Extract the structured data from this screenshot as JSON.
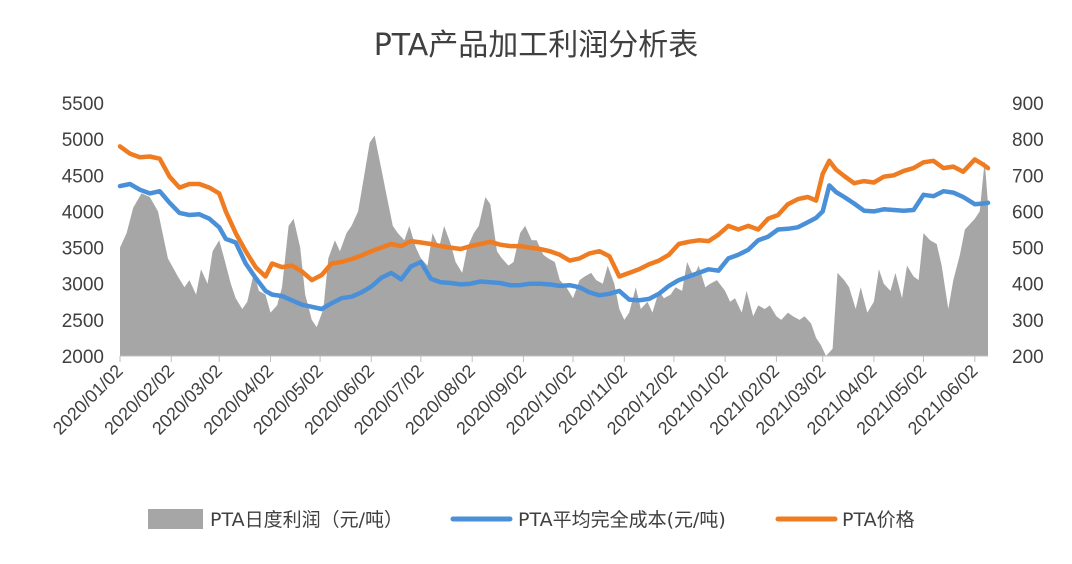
{
  "chart_data": {
    "type": "line",
    "title": "PTA产品加工利润分析表",
    "x_type": "date",
    "xlim": [
      "2020-01-02",
      "2021-06-10"
    ],
    "x_tick_labels": [
      "2020/01/02",
      "2020/02/02",
      "2020/03/02",
      "2020/04/02",
      "2020/05/02",
      "2020/06/02",
      "2020/07/02",
      "2020/08/02",
      "2020/09/02",
      "2020/10/02",
      "2020/11/02",
      "2020/12/02",
      "2021/01/02",
      "2021/02/02",
      "2021/03/02",
      "2021/04/02",
      "2021/05/02",
      "2021/06/02"
    ],
    "y_left": {
      "ticks": [
        "2000",
        "2500",
        "3000",
        "3500",
        "4000",
        "4500",
        "5000",
        "5500"
      ],
      "ylim": [
        2000,
        5500
      ]
    },
    "y_right": {
      "ticks": [
        "200",
        "300",
        "400",
        "500",
        "600",
        "700",
        "800",
        "900"
      ],
      "ylim": [
        200,
        900
      ]
    },
    "grid": false,
    "legend_position": "bottom",
    "series": [
      {
        "name": "PTA日度利润（元/吨）",
        "type": "area",
        "axis": "right",
        "color": "#a6a6a6",
        "x": [
          "2020-01-02",
          "2020-01-06",
          "2020-01-10",
          "2020-01-15",
          "2020-01-20",
          "2020-01-25",
          "2020-01-31",
          "2020-02-06",
          "2020-02-10",
          "2020-02-13",
          "2020-02-17",
          "2020-02-20",
          "2020-02-24",
          "2020-02-27",
          "2020-03-02",
          "2020-03-05",
          "2020-03-09",
          "2020-03-12",
          "2020-03-16",
          "2020-03-19",
          "2020-03-23",
          "2020-03-26",
          "2020-03-30",
          "2020-04-02",
          "2020-04-06",
          "2020-04-09",
          "2020-04-13",
          "2020-04-16",
          "2020-04-20",
          "2020-04-23",
          "2020-04-27",
          "2020-04-30",
          "2020-05-04",
          "2020-05-07",
          "2020-05-11",
          "2020-05-14",
          "2020-05-18",
          "2020-05-21",
          "2020-05-25",
          "2020-05-28",
          "2020-06-01",
          "2020-06-04",
          "2020-06-08",
          "2020-06-11",
          "2020-06-15",
          "2020-06-18",
          "2020-06-22",
          "2020-06-25",
          "2020-06-29",
          "2020-07-02",
          "2020-07-06",
          "2020-07-09",
          "2020-07-13",
          "2020-07-16",
          "2020-07-20",
          "2020-07-23",
          "2020-07-27",
          "2020-07-30",
          "2020-08-03",
          "2020-08-06",
          "2020-08-10",
          "2020-08-13",
          "2020-08-17",
          "2020-08-20",
          "2020-08-24",
          "2020-08-27",
          "2020-08-31",
          "2020-09-03",
          "2020-09-07",
          "2020-09-10",
          "2020-09-14",
          "2020-09-17",
          "2020-09-21",
          "2020-09-24",
          "2020-09-28",
          "2020-10-02",
          "2020-10-06",
          "2020-10-09",
          "2020-10-13",
          "2020-10-16",
          "2020-10-20",
          "2020-10-23",
          "2020-10-27",
          "2020-10-30",
          "2020-11-02",
          "2020-11-05",
          "2020-11-09",
          "2020-11-12",
          "2020-11-16",
          "2020-11-19",
          "2020-11-23",
          "2020-11-26",
          "2020-11-30",
          "2020-12-03",
          "2020-12-07",
          "2020-12-10",
          "2020-12-14",
          "2020-12-17",
          "2020-12-21",
          "2020-12-24",
          "2020-12-28",
          "2021-01-02",
          "2021-01-05",
          "2021-01-08",
          "2021-01-12",
          "2021-01-15",
          "2021-01-19",
          "2021-01-22",
          "2021-01-26",
          "2021-01-29",
          "2021-02-02",
          "2021-02-05",
          "2021-02-09",
          "2021-02-12",
          "2021-02-16",
          "2021-02-19",
          "2021-02-23",
          "2021-02-26",
          "2021-03-01",
          "2021-03-04",
          "2021-03-08",
          "2021-03-11",
          "2021-03-15",
          "2021-03-18",
          "2021-03-22",
          "2021-03-25",
          "2021-03-29",
          "2021-04-02",
          "2021-04-05",
          "2021-04-08",
          "2021-04-12",
          "2021-04-15",
          "2021-04-19",
          "2021-04-22",
          "2021-04-26",
          "2021-04-29",
          "2021-05-02",
          "2021-05-06",
          "2021-05-10",
          "2021-05-13",
          "2021-05-17",
          "2021-05-20",
          "2021-05-24",
          "2021-05-27",
          "2021-06-02",
          "2021-06-05",
          "2021-06-08",
          "2021-06-10"
        ],
        "values": [
          500,
          540,
          610,
          650,
          640,
          600,
          470,
          420,
          390,
          410,
          370,
          440,
          400,
          490,
          520,
          470,
          400,
          360,
          330,
          350,
          430,
          380,
          370,
          320,
          340,
          390,
          560,
          580,
          500,
          370,
          300,
          280,
          330,
          470,
          520,
          490,
          540,
          560,
          600,
          680,
          790,
          810,
          720,
          650,
          560,
          540,
          520,
          560,
          500,
          470,
          450,
          540,
          500,
          560,
          510,
          460,
          430,
          500,
          540,
          560,
          640,
          620,
          490,
          470,
          450,
          460,
          540,
          560,
          520,
          520,
          480,
          470,
          460,
          410,
          390,
          360,
          410,
          420,
          430,
          410,
          400,
          450,
          400,
          330,
          300,
          320,
          390,
          330,
          350,
          320,
          380,
          360,
          370,
          390,
          380,
          460,
          420,
          450,
          390,
          400,
          410,
          380,
          350,
          360,
          320,
          380,
          310,
          340,
          330,
          340,
          310,
          300,
          320,
          310,
          300,
          310,
          290,
          250,
          230,
          200,
          220,
          430,
          410,
          390,
          330,
          390,
          320,
          350,
          440,
          400,
          380,
          430,
          360,
          450,
          420,
          410,
          540,
          520,
          510,
          450,
          330,
          410,
          480,
          550,
          580,
          600,
          740,
          620
        ]
      },
      {
        "name": "PTA平均完全成本(元/吨)",
        "type": "line",
        "axis": "left",
        "color": "#4a90d9",
        "x": [
          "2020-01-02",
          "2020-01-08",
          "2020-01-14",
          "2020-01-20",
          "2020-01-26",
          "2020-02-01",
          "2020-02-07",
          "2020-02-13",
          "2020-02-19",
          "2020-02-25",
          "2020-03-02",
          "2020-03-06",
          "2020-03-12",
          "2020-03-18",
          "2020-03-24",
          "2020-03-30",
          "2020-04-03",
          "2020-04-09",
          "2020-04-15",
          "2020-04-21",
          "2020-04-27",
          "2020-05-03",
          "2020-05-09",
          "2020-05-15",
          "2020-05-21",
          "2020-05-27",
          "2020-06-02",
          "2020-06-08",
          "2020-06-14",
          "2020-06-20",
          "2020-06-26",
          "2020-07-02",
          "2020-07-08",
          "2020-07-14",
          "2020-07-20",
          "2020-07-26",
          "2020-08-01",
          "2020-08-07",
          "2020-08-13",
          "2020-08-19",
          "2020-08-25",
          "2020-08-31",
          "2020-09-06",
          "2020-09-12",
          "2020-09-18",
          "2020-09-24",
          "2020-09-30",
          "2020-10-06",
          "2020-10-12",
          "2020-10-18",
          "2020-10-24",
          "2020-10-30",
          "2020-11-05",
          "2020-11-11",
          "2020-11-17",
          "2020-11-23",
          "2020-11-29",
          "2020-12-05",
          "2020-12-11",
          "2020-12-17",
          "2020-12-23",
          "2020-12-29",
          "2021-01-04",
          "2021-01-10",
          "2021-01-16",
          "2021-01-22",
          "2021-01-28",
          "2021-02-03",
          "2021-02-09",
          "2021-02-15",
          "2021-02-21",
          "2021-02-26",
          "2021-03-02",
          "2021-03-06",
          "2021-03-10",
          "2021-03-15",
          "2021-03-21",
          "2021-03-27",
          "2021-04-02",
          "2021-04-08",
          "2021-04-14",
          "2021-04-20",
          "2021-04-26",
          "2021-05-02",
          "2021-05-08",
          "2021-05-14",
          "2021-05-20",
          "2021-05-26",
          "2021-06-02",
          "2021-06-07",
          "2021-06-10"
        ],
        "values": [
          4350,
          4380,
          4300,
          4250,
          4280,
          4120,
          3980,
          3950,
          3960,
          3900,
          3780,
          3620,
          3570,
          3280,
          3080,
          2900,
          2850,
          2830,
          2770,
          2710,
          2680,
          2650,
          2730,
          2800,
          2820,
          2880,
          2960,
          3080,
          3150,
          3060,
          3240,
          3300,
          3070,
          3020,
          3010,
          2990,
          3000,
          3030,
          3020,
          3010,
          2980,
          2980,
          3000,
          3000,
          2990,
          2970,
          2980,
          2950,
          2880,
          2840,
          2860,
          2900,
          2780,
          2770,
          2790,
          2860,
          2970,
          3050,
          3100,
          3150,
          3200,
          3180,
          3350,
          3400,
          3470,
          3600,
          3650,
          3750,
          3760,
          3780,
          3850,
          3910,
          4000,
          4360,
          4270,
          4200,
          4110,
          4010,
          4000,
          4030,
          4020,
          4010,
          4020,
          4230,
          4210,
          4280,
          4260,
          4200,
          4100,
          4110,
          4120
        ]
      },
      {
        "name": "PTA价格",
        "type": "line",
        "axis": "left",
        "color": "#f07c22",
        "x": [
          "2020-01-02",
          "2020-01-08",
          "2020-01-14",
          "2020-01-20",
          "2020-01-26",
          "2020-02-01",
          "2020-02-07",
          "2020-02-13",
          "2020-02-19",
          "2020-02-25",
          "2020-03-02",
          "2020-03-06",
          "2020-03-12",
          "2020-03-18",
          "2020-03-24",
          "2020-03-30",
          "2020-04-03",
          "2020-04-09",
          "2020-04-15",
          "2020-04-21",
          "2020-04-27",
          "2020-05-03",
          "2020-05-09",
          "2020-05-15",
          "2020-05-21",
          "2020-05-27",
          "2020-06-02",
          "2020-06-08",
          "2020-06-14",
          "2020-06-20",
          "2020-06-26",
          "2020-07-02",
          "2020-07-08",
          "2020-07-14",
          "2020-07-20",
          "2020-07-26",
          "2020-08-01",
          "2020-08-07",
          "2020-08-13",
          "2020-08-19",
          "2020-08-25",
          "2020-08-31",
          "2020-09-06",
          "2020-09-12",
          "2020-09-18",
          "2020-09-24",
          "2020-09-30",
          "2020-10-06",
          "2020-10-12",
          "2020-10-18",
          "2020-10-24",
          "2020-10-30",
          "2020-11-05",
          "2020-11-11",
          "2020-11-17",
          "2020-11-23",
          "2020-11-29",
          "2020-12-05",
          "2020-12-11",
          "2020-12-17",
          "2020-12-23",
          "2020-12-29",
          "2021-01-04",
          "2021-01-10",
          "2021-01-16",
          "2021-01-22",
          "2021-01-28",
          "2021-02-03",
          "2021-02-09",
          "2021-02-15",
          "2021-02-21",
          "2021-02-26",
          "2021-03-02",
          "2021-03-06",
          "2021-03-10",
          "2021-03-15",
          "2021-03-21",
          "2021-03-27",
          "2021-04-02",
          "2021-04-08",
          "2021-04-14",
          "2021-04-20",
          "2021-04-26",
          "2021-05-02",
          "2021-05-08",
          "2021-05-14",
          "2021-05-20",
          "2021-05-26",
          "2021-06-02",
          "2021-06-07",
          "2021-06-10"
        ],
        "values": [
          4900,
          4800,
          4750,
          4760,
          4730,
          4480,
          4330,
          4380,
          4380,
          4330,
          4250,
          4000,
          3700,
          3450,
          3230,
          3100,
          3280,
          3230,
          3250,
          3170,
          3050,
          3120,
          3280,
          3300,
          3340,
          3390,
          3450,
          3500,
          3550,
          3520,
          3590,
          3570,
          3550,
          3520,
          3500,
          3480,
          3520,
          3550,
          3580,
          3540,
          3520,
          3520,
          3500,
          3480,
          3450,
          3400,
          3320,
          3350,
          3420,
          3450,
          3380,
          3100,
          3150,
          3200,
          3270,
          3320,
          3400,
          3550,
          3580,
          3600,
          3590,
          3680,
          3800,
          3750,
          3800,
          3750,
          3900,
          3950,
          4100,
          4170,
          4200,
          4150,
          4520,
          4700,
          4580,
          4490,
          4390,
          4420,
          4400,
          4480,
          4500,
          4560,
          4600,
          4680,
          4700,
          4600,
          4620,
          4550,
          4720,
          4650,
          4600
        ]
      }
    ]
  }
}
